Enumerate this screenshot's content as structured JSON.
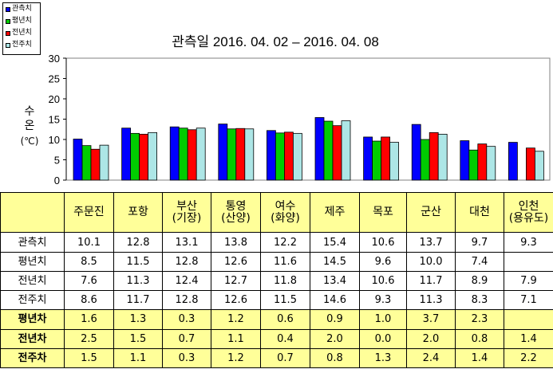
{
  "chart_data": {
    "type": "bar",
    "title": "관측일 2016. 04. 02 – 2016. 04. 08",
    "ylabel": [
      "수",
      "온",
      "(℃)"
    ],
    "ylim": [
      0,
      30
    ],
    "yticks": [
      "0",
      "5",
      "10",
      "15",
      "20",
      "25",
      "30"
    ],
    "categories": [
      "주문진",
      "포항",
      "부산 (기장)",
      "통영 (산양)",
      "여수 (화양)",
      "제주",
      "목포",
      "군산",
      "대천",
      "인천 (용유도)"
    ],
    "series": [
      {
        "name": "관측치",
        "color": "#0000ff",
        "values": [
          10.1,
          12.8,
          13.1,
          13.8,
          12.2,
          15.4,
          10.6,
          13.7,
          9.7,
          9.3
        ]
      },
      {
        "name": "평년치",
        "color": "#00cc00",
        "values": [
          8.5,
          11.5,
          12.8,
          12.6,
          11.6,
          14.5,
          9.6,
          10.0,
          7.4,
          null
        ]
      },
      {
        "name": "전년치",
        "color": "#ff0000",
        "values": [
          7.6,
          11.3,
          12.4,
          12.7,
          11.8,
          13.4,
          10.6,
          11.7,
          8.9,
          7.9
        ]
      },
      {
        "name": "전주치",
        "color": "#ade6e6",
        "values": [
          8.6,
          11.7,
          12.8,
          12.6,
          11.5,
          14.6,
          9.3,
          11.3,
          8.3,
          7.1
        ]
      }
    ],
    "grid": false,
    "legend": "top-left",
    "background": "#ffffff"
  },
  "table": {
    "header_bg": "#ffff99",
    "diff_bg": "#ffff99",
    "columns": [
      [
        "주문진"
      ],
      [
        "포항"
      ],
      [
        "부산",
        "(기장)"
      ],
      [
        "통영",
        "(산양)"
      ],
      [
        "여수",
        "(화양)"
      ],
      [
        "제주"
      ],
      [
        "목포"
      ],
      [
        "군산"
      ],
      [
        "대천"
      ],
      [
        "인천",
        "(용유도)"
      ]
    ],
    "rows": [
      {
        "label": "관측치",
        "bold": false,
        "values": [
          "10.1",
          "12.8",
          "13.1",
          "13.8",
          "12.2",
          "15.4",
          "10.6",
          "13.7",
          "9.7",
          "9.3"
        ]
      },
      {
        "label": "평년치",
        "bold": false,
        "values": [
          "8.5",
          "11.5",
          "12.8",
          "12.6",
          "11.6",
          "14.5",
          "9.6",
          "10.0",
          "7.4",
          ""
        ]
      },
      {
        "label": "전년치",
        "bold": false,
        "values": [
          "7.6",
          "11.3",
          "12.4",
          "12.7",
          "11.8",
          "13.4",
          "10.6",
          "11.7",
          "8.9",
          "7.9"
        ]
      },
      {
        "label": "전주치",
        "bold": false,
        "values": [
          "8.6",
          "11.7",
          "12.8",
          "12.6",
          "11.5",
          "14.6",
          "9.3",
          "11.3",
          "8.3",
          "7.1"
        ]
      },
      {
        "label": "평년차",
        "bold": true,
        "values": [
          "1.6",
          "1.3",
          "0.3",
          "1.2",
          "0.6",
          "0.9",
          "1.0",
          "3.7",
          "2.3",
          ""
        ]
      },
      {
        "label": "전년차",
        "bold": true,
        "values": [
          "2.5",
          "1.5",
          "0.7",
          "1.1",
          "0.4",
          "2.0",
          "0.0",
          "2.0",
          "0.8",
          "1.4"
        ]
      },
      {
        "label": "전주차",
        "bold": true,
        "values": [
          "1.5",
          "1.1",
          "0.3",
          "1.2",
          "0.7",
          "0.8",
          "1.3",
          "2.4",
          "1.4",
          "2.2"
        ]
      }
    ]
  }
}
